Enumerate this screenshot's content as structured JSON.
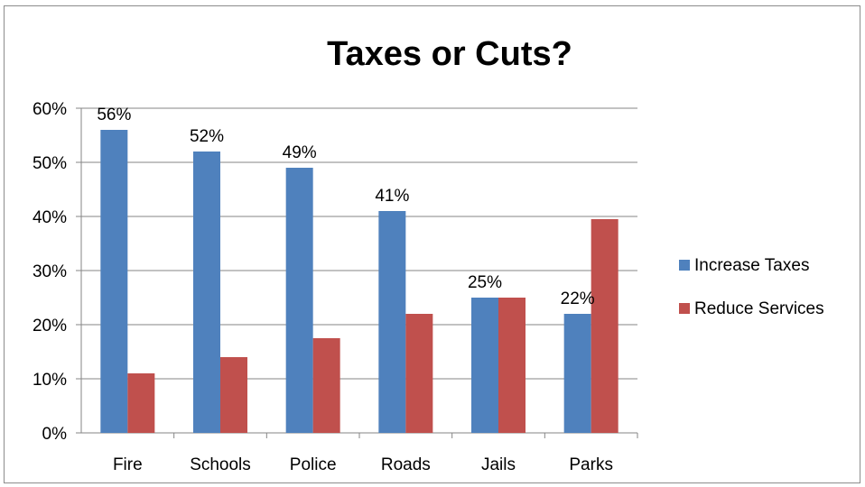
{
  "chart_data": {
    "type": "bar",
    "title": "Taxes or Cuts?",
    "xlabel": "",
    "ylabel": "",
    "categories": [
      "Fire",
      "Schools",
      "Police",
      "Roads",
      "Jails",
      "Parks"
    ],
    "series": [
      {
        "name": "Increase Taxes",
        "color": "#4f81bd",
        "values": [
          56,
          52,
          49,
          41,
          25,
          22
        ],
        "data_labels": [
          "56%",
          "52%",
          "49%",
          "41%",
          "25%",
          "22%"
        ]
      },
      {
        "name": "Reduce Services",
        "color": "#c0504d",
        "values": [
          11,
          14,
          17.5,
          22,
          25,
          39.5
        ]
      }
    ],
    "ylim": [
      0,
      60
    ],
    "yticks": [
      0,
      10,
      20,
      30,
      40,
      50,
      60
    ],
    "ytick_labels": [
      "0%",
      "10%",
      "20%",
      "30%",
      "40%",
      "50%",
      "60%"
    ],
    "grid": true,
    "legend_position": "right"
  }
}
